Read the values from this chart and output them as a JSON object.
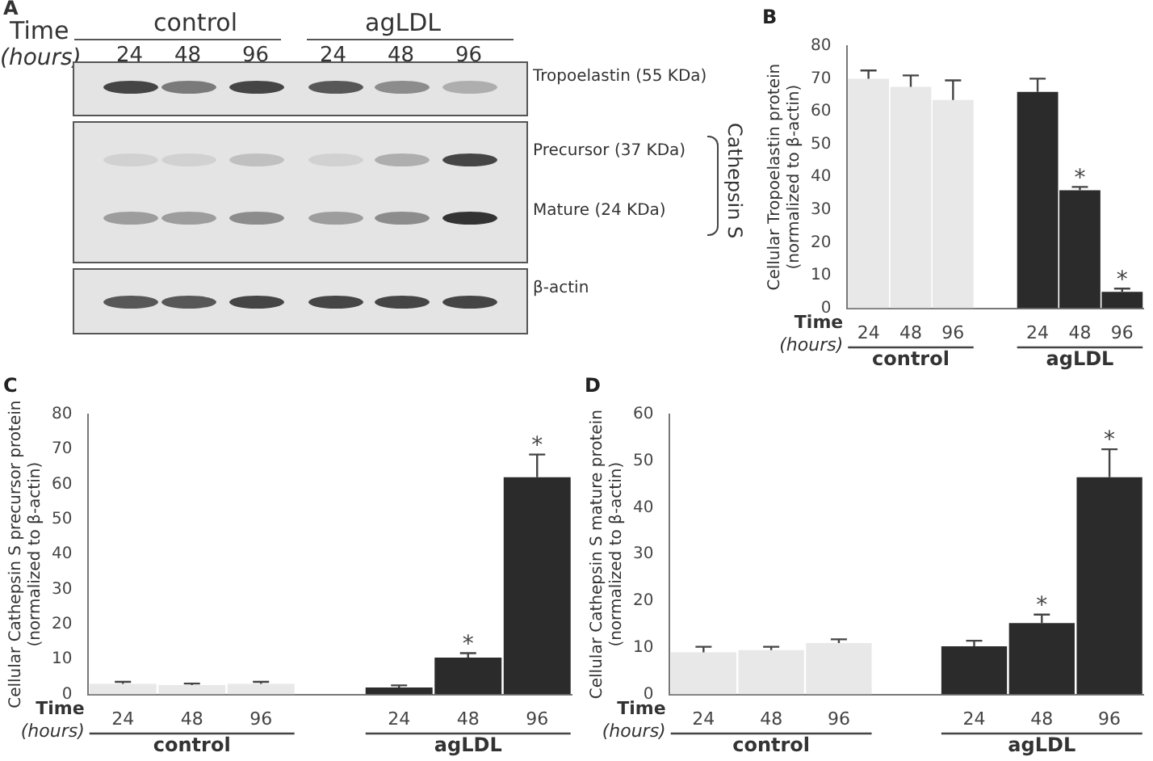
{
  "chart_data": [
    {
      "type": "other",
      "title": "A",
      "annotations": [
        "Time",
        "(hours)",
        "control",
        "agLDL",
        "24",
        "48",
        "96",
        "24",
        "48",
        "96",
        "Tropoelastin (55 KDa)",
        "Precursor (37 KDa)",
        "Mature (24 KDa)",
        "Cathepsin S",
        "β-actin"
      ]
    },
    {
      "type": "bar",
      "title": "B",
      "ylabel": "Cellular Tropoelastin protein\n(normalized to β-actin)",
      "categories": [
        "24",
        "48",
        "96",
        null,
        "24",
        "48",
        "96"
      ],
      "values": [
        70,
        67.5,
        63.5,
        null,
        66,
        36,
        5
      ],
      "colors": [
        "#e8e8e8",
        "#e8e8e8",
        "#e8e8e8",
        null,
        "#2b2b2b",
        "#2b2b2b",
        "#2b2b2b"
      ],
      "errors": [
        [
          70,
          72.5
        ],
        [
          67.5,
          71
        ],
        [
          63.5,
          69.5
        ],
        null,
        [
          66,
          70
        ],
        [
          36,
          37
        ],
        [
          5,
          6
        ]
      ],
      "value_labels": [
        null,
        null,
        null,
        null,
        null,
        "*",
        "*"
      ],
      "ylim": [
        0,
        80
      ],
      "yticks": [
        0,
        10,
        20,
        30,
        40,
        50,
        60,
        70,
        80
      ],
      "annotations": [
        "Time",
        "(hours)",
        "control",
        "agLDL"
      ]
    },
    {
      "type": "bar",
      "title": "C",
      "ylabel": "Cellular Cathepsin S precursor protein\n(normalized to β-actin)",
      "categories": [
        "24",
        "48",
        "96",
        null,
        "24",
        "48",
        "96"
      ],
      "values": [
        3,
        2.7,
        3,
        null,
        2,
        10.5,
        62
      ],
      "colors": [
        "#e8e8e8",
        "#e8e8e8",
        "#e8e8e8",
        null,
        "#2b2b2b",
        "#2b2b2b",
        "#2b2b2b"
      ],
      "errors": [
        [
          3,
          3.6
        ],
        [
          2.7,
          3.1
        ],
        [
          3,
          3.6
        ],
        null,
        [
          2,
          2.6
        ],
        [
          10.5,
          11.8
        ],
        [
          62,
          68.5
        ]
      ],
      "value_labels": [
        null,
        null,
        null,
        null,
        null,
        "*",
        "*"
      ],
      "ylim": [
        0,
        80
      ],
      "yticks": [
        0,
        10,
        20,
        30,
        40,
        50,
        60,
        70,
        80
      ],
      "annotations": [
        "Time",
        "(hours)",
        "control",
        "agLDL"
      ]
    },
    {
      "type": "bar",
      "title": "D",
      "ylabel": "Cellular Cathepsin S mature protein\n(normalized to β-actin)",
      "categories": [
        "24",
        "48",
        "96",
        null,
        "24",
        "48",
        "96"
      ],
      "values": [
        9,
        9.5,
        11,
        null,
        10.3,
        15.3,
        46.5
      ],
      "colors": [
        "#e8e8e8",
        "#e8e8e8",
        "#e8e8e8",
        null,
        "#2b2b2b",
        "#2b2b2b",
        "#2b2b2b"
      ],
      "errors": [
        [
          9,
          10.2
        ],
        [
          9.5,
          10.2
        ],
        [
          11,
          11.8
        ],
        null,
        [
          10.3,
          11.5
        ],
        [
          15.3,
          17.1
        ],
        [
          46.5,
          52.5
        ]
      ],
      "value_labels": [
        null,
        null,
        null,
        null,
        null,
        "*",
        "*"
      ],
      "ylim": [
        0,
        60
      ],
      "yticks": [
        0,
        10,
        20,
        30,
        40,
        50,
        60
      ],
      "annotations": [
        "Time",
        "(hours)",
        "control",
        "agLDL"
      ]
    }
  ]
}
